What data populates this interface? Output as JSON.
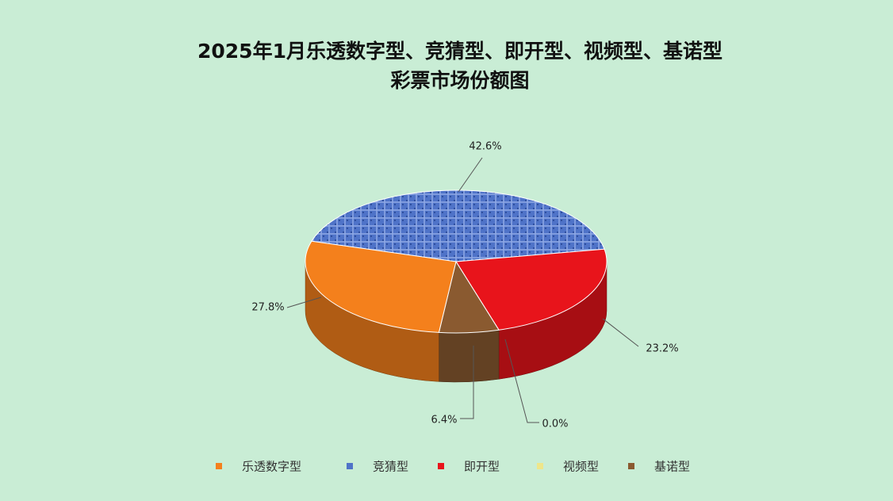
{
  "chart_data": {
    "type": "pie3d",
    "title": [
      "2025年1月乐透数字型、竞猜型、即开型、视频型、基诺型",
      "彩票市场份额图"
    ],
    "categories": [
      "乐透数字型",
      "竞猜型",
      "即开型",
      "视频型",
      "基诺型"
    ],
    "values": [
      27.8,
      42.6,
      23.2,
      0.0,
      6.4
    ],
    "value_labels": [
      "27.8%",
      "42.6%",
      "23.2%",
      "0.0%",
      "6.4%"
    ],
    "colors": [
      "#f4801c",
      "#4f73c8",
      "#e8141b",
      "#eee68a",
      "#8a5a30"
    ],
    "legend": "bottom"
  }
}
